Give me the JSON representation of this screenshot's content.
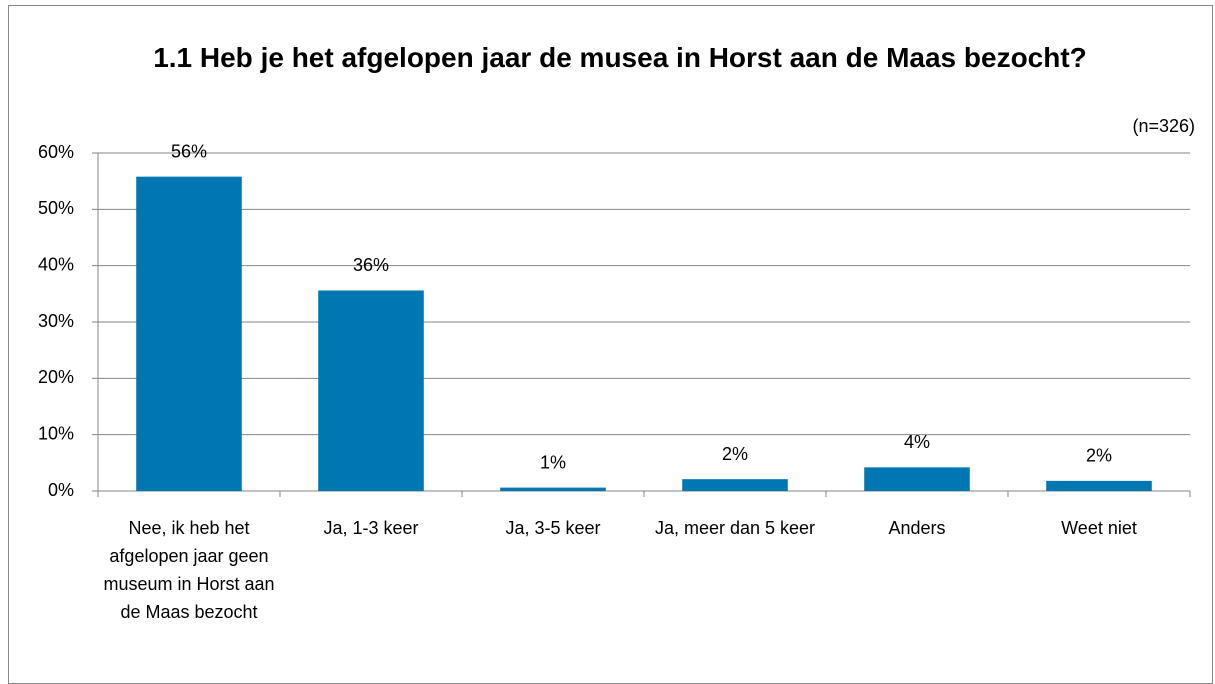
{
  "chart_data": {
    "type": "bar",
    "title": "1.1 Heb je het afgelopen jaar de musea in Horst aan de Maas bezocht?",
    "subtitle": "(n=326)",
    "categories": [
      "Nee, ik heb het afgelopen jaar geen museum in Horst aan de Maas bezocht",
      "Ja, 1-3 keer",
      "Ja, 3-5 keer",
      "Ja, meer dan 5 keer",
      "Anders",
      "Weet niet"
    ],
    "values": [
      55.8,
      35.6,
      0.6,
      2.1,
      4.2,
      1.8
    ],
    "value_labels": [
      "56%",
      "36%",
      "1%",
      "2%",
      "4%",
      "2%"
    ],
    "color": "#0077b0",
    "ylim": [
      0,
      60
    ],
    "yticks": [
      {
        "value": 0,
        "label": "0%"
      },
      {
        "value": 10,
        "label": "10%"
      },
      {
        "value": 20,
        "label": "20%"
      },
      {
        "value": 30,
        "label": "30%"
      },
      {
        "value": 40,
        "label": "40%"
      },
      {
        "value": 50,
        "label": "50%"
      },
      {
        "value": 60,
        "label": "60%"
      }
    ],
    "grid": true
  }
}
